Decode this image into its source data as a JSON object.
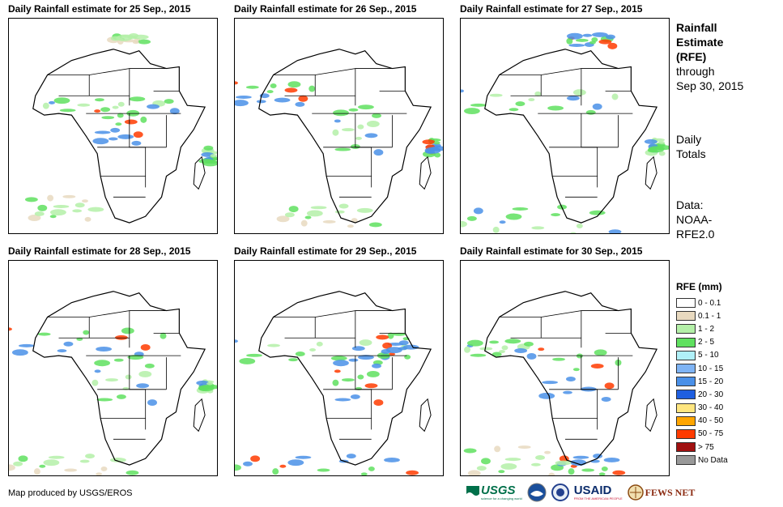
{
  "panels": [
    {
      "title": "Daily Rainfall estimate for 25 Sep., 2015"
    },
    {
      "title": "Daily Rainfall estimate for 26 Sep., 2015"
    },
    {
      "title": "Daily Rainfall estimate for 27 Sep., 2015"
    },
    {
      "title": "Daily Rainfall estimate for 28 Sep., 2015"
    },
    {
      "title": "Daily Rainfall estimate for 29 Sep., 2015"
    },
    {
      "title": "Daily Rainfall estimate for 30 Sep., 2015"
    }
  ],
  "sidebar": {
    "heading_line1": "Rainfall",
    "heading_line2": "Estimate",
    "heading_line3": "(RFE)",
    "through_label": "through",
    "through_date": "Sep 30, 2015",
    "totals_line1": "Daily",
    "totals_line2": "Totals",
    "data_line1": "Data:",
    "data_line2": "NOAA-",
    "data_line3": "RFE2.0"
  },
  "legend": {
    "title": "RFE (mm)",
    "items": [
      {
        "label": "0 - 0.1",
        "color": "#ffffff"
      },
      {
        "label": "0.1 - 1",
        "color": "#e8d9bf"
      },
      {
        "label": "1 - 2",
        "color": "#b4f0a8"
      },
      {
        "label": "2 - 5",
        "color": "#5fe05f"
      },
      {
        "label": "5 - 10",
        "color": "#b0f0f8"
      },
      {
        "label": "10 - 15",
        "color": "#7fb4f5"
      },
      {
        "label": "15 - 20",
        "color": "#4a90e8"
      },
      {
        "label": "20 - 30",
        "color": "#1f5fe0"
      },
      {
        "label": "30 - 40",
        "color": "#ffe680"
      },
      {
        "label": "40 - 50",
        "color": "#ffa500"
      },
      {
        "label": "50 - 75",
        "color": "#ff3b00"
      },
      {
        "label": "> 75",
        "color": "#a01010"
      },
      {
        "label": "No Data",
        "color": "#999999"
      }
    ]
  },
  "credit": "Map produced by USGS/EROS",
  "logos": {
    "usgs": "USGS",
    "usgs_tagline": "science for a changing world",
    "usaid": "USAID",
    "usaid_tagline": "FROM THE AMERICAN PEOPLE",
    "fewsnet": "FEWS NET"
  }
}
